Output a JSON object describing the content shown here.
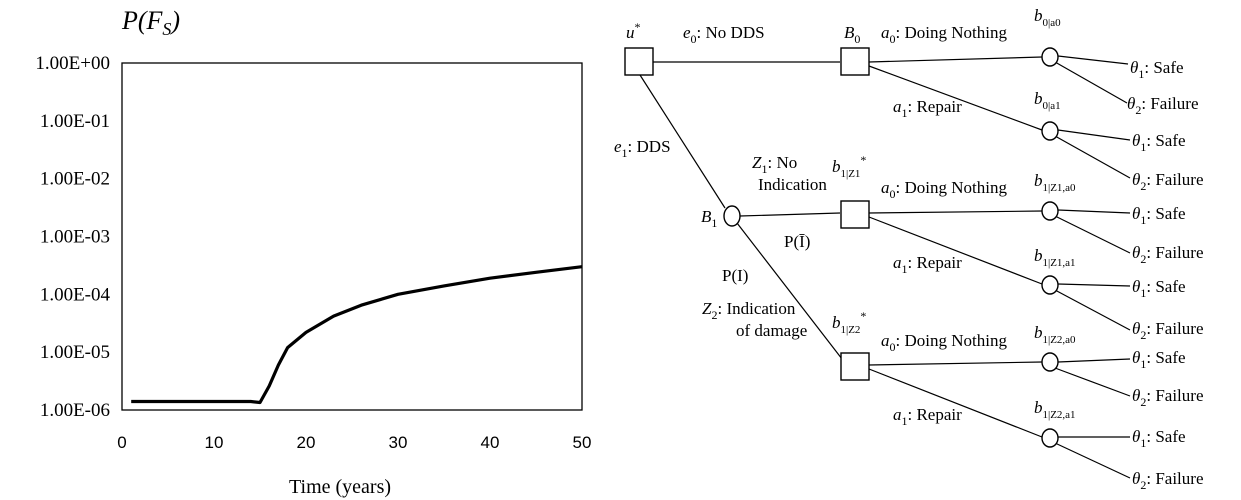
{
  "chart_data": [
    {
      "type": "line",
      "title": "",
      "ylabel": "P(F_S)",
      "xlabel": "Time (years)",
      "yscale": "log",
      "xlim": [
        0,
        50
      ],
      "ylim": [
        1e-06,
        1
      ],
      "xticks": [
        "0",
        "10",
        "20",
        "30",
        "40",
        "50"
      ],
      "yticks": [
        "1.00E+00",
        "1.00E-01",
        "1.00E-02",
        "1.00E-03",
        "1.00E-04",
        "1.00E-05",
        "1.00E-06"
      ],
      "grid": false,
      "series": [
        {
          "color": "#000000",
          "x": [
            1,
            5,
            10,
            14,
            15,
            16,
            17,
            18,
            20,
            23,
            26,
            30,
            35,
            40,
            45,
            50
          ],
          "y": [
            1.4e-06,
            1.4e-06,
            1.4e-06,
            1.4e-06,
            1.35e-06,
            2.6e-06,
            6e-06,
            1.2e-05,
            2.2e-05,
            4.2e-05,
            6.5e-05,
            0.0001,
            0.00014,
            0.00019,
            0.00024,
            0.0003
          ]
        }
      ]
    },
    {
      "type": "diagram",
      "labels": {
        "u": "u*",
        "e0": "e0: No DDS",
        "e1": "e1: DDS",
        "B0": "B0",
        "B1": "B1",
        "Z1_line1": "Z1: No",
        "Z1_line2": "Indication",
        "P_notI": "P(Ī)",
        "P_I": "P(I)",
        "Z2_line1": "Z2:  Indication",
        "Z2_line2": "of damage",
        "b1Z1star": "b1|Z1*",
        "b1Z2star": "b1|Z2*",
        "a0": "a0: Doing Nothing",
        "a1": "a1: Repair",
        "b0a0": "b0|a0",
        "b0a1": "b0|a1",
        "b1Z1a0": "b1|Z1,a0",
        "b1Z1a1": "b1|Z1,a1",
        "b1Z2a0": "b1|Z2,a0",
        "b1Z2a1": "b1|Z2,a1",
        "theta1": "θ1: Safe",
        "theta2": "θ2: Failure"
      }
    }
  ]
}
